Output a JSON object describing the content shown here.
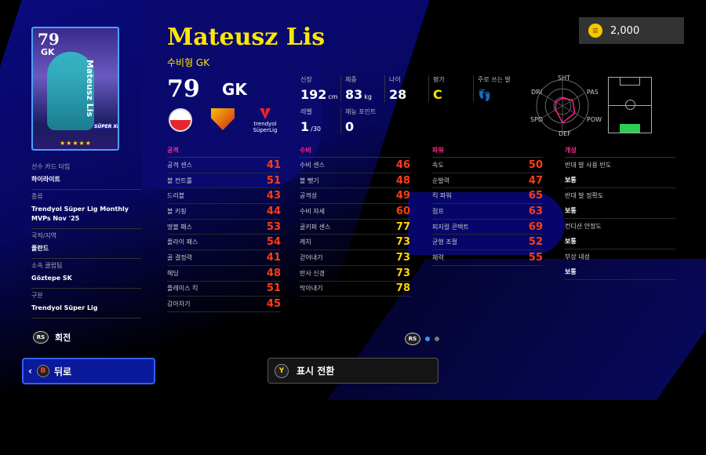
{
  "currency": {
    "icon": "coin-icon",
    "amount": "2,000"
  },
  "card": {
    "overall": "79",
    "position": "GK",
    "name": "Mateusz Lis",
    "stars": "★★★★★",
    "badge": "SÜPER XI"
  },
  "player": {
    "name": "Mateusz Lis",
    "playstyle": "수비형 GK",
    "overall": "79",
    "position": "GK"
  },
  "league_logo": {
    "line1": "trendyol",
    "line2": "SüperLig"
  },
  "info": {
    "height": {
      "label": "신장",
      "value": "192",
      "unit": "cm"
    },
    "weight": {
      "label": "체중",
      "value": "83",
      "unit": "kg"
    },
    "age": {
      "label": "나이",
      "value": "28"
    },
    "rating": {
      "label": "평가",
      "value": "C"
    },
    "foot": {
      "label": "주로 쓰는 발",
      "icon": "feet-icon"
    },
    "level": {
      "label": "레벨",
      "value": "1",
      "max": "/30"
    },
    "skill_points": {
      "label": "재능 포인트",
      "value": "0"
    }
  },
  "radar": {
    "labels": {
      "sht": "SHT",
      "pas": "PAS",
      "pow": "POW",
      "def": "DEF",
      "spd": "SPD",
      "dri": "DRI"
    },
    "levels": {
      "sht": 0.3,
      "pas": 0.45,
      "pow": 0.55,
      "def": 0.65,
      "spd": 0.3,
      "dri": 0.3
    },
    "color": "#ff1a8c"
  },
  "left_panel": [
    {
      "label": "선수 카드 타입",
      "value": "하이라이트"
    },
    {
      "label": "종류",
      "value": "Trendyol Süper Lig Monthly MVPs Nov '25"
    },
    {
      "label": "국적/지역",
      "value": "폴란드"
    },
    {
      "label": "소속 클럽팀",
      "value": "Göztepe SK"
    },
    {
      "label": "구분",
      "value": "Trendyol Süper Lig"
    }
  ],
  "rotate": {
    "button": "RS",
    "label": "회전"
  },
  "stats": {
    "attack": {
      "title": "공격",
      "rows": [
        [
          "공격 센스",
          "41"
        ],
        [
          "볼 컨트롤",
          "51"
        ],
        [
          "드리블",
          "43"
        ],
        [
          "볼 키핑",
          "44"
        ],
        [
          "땅볼 패스",
          "53"
        ],
        [
          "플라이 패스",
          "54"
        ],
        [
          "골 결정력",
          "41"
        ],
        [
          "헤딩",
          "48"
        ],
        [
          "플레이스 킥",
          "51"
        ],
        [
          "감아차기",
          "45"
        ]
      ]
    },
    "defense": {
      "title": "수비",
      "rows": [
        [
          "수비 센스",
          "46"
        ],
        [
          "볼 뺏기",
          "48"
        ],
        [
          "공격성",
          "49"
        ],
        [
          "수비 자세",
          "60"
        ],
        [
          "골키퍼 센스",
          "77"
        ],
        [
          "캐치",
          "73"
        ],
        [
          "걷어내기",
          "73"
        ],
        [
          "반사 신경",
          "73"
        ],
        [
          "막아내기",
          "78"
        ]
      ]
    },
    "power": {
      "title": "파워",
      "rows": [
        [
          "속도",
          "50"
        ],
        [
          "순발력",
          "47"
        ],
        [
          "킥 파워",
          "65"
        ],
        [
          "점프",
          "63"
        ],
        [
          "피지컬 콘택트",
          "69"
        ],
        [
          "균형 조절",
          "52"
        ],
        [
          "체력",
          "55"
        ]
      ]
    },
    "traits": {
      "title": "개성",
      "rows": [
        [
          "반대 발 사용 빈도",
          "보통"
        ],
        [
          "반대 발 정확도",
          "보통"
        ],
        [
          "컨디션 안정도",
          "보통"
        ],
        [
          "부상 내성",
          "보통"
        ]
      ]
    }
  },
  "pager": {
    "button": "RS",
    "pages": 2,
    "current": 1
  },
  "footer": {
    "back_key": "B",
    "back_label": "뒤로",
    "toggle_key": "Y",
    "toggle_label": "표시 전환"
  },
  "colors": {
    "accent": "#ffe600",
    "stat_low": "#ff3d12",
    "stat_high": "#ffd400",
    "section": "#ff2b8c"
  }
}
